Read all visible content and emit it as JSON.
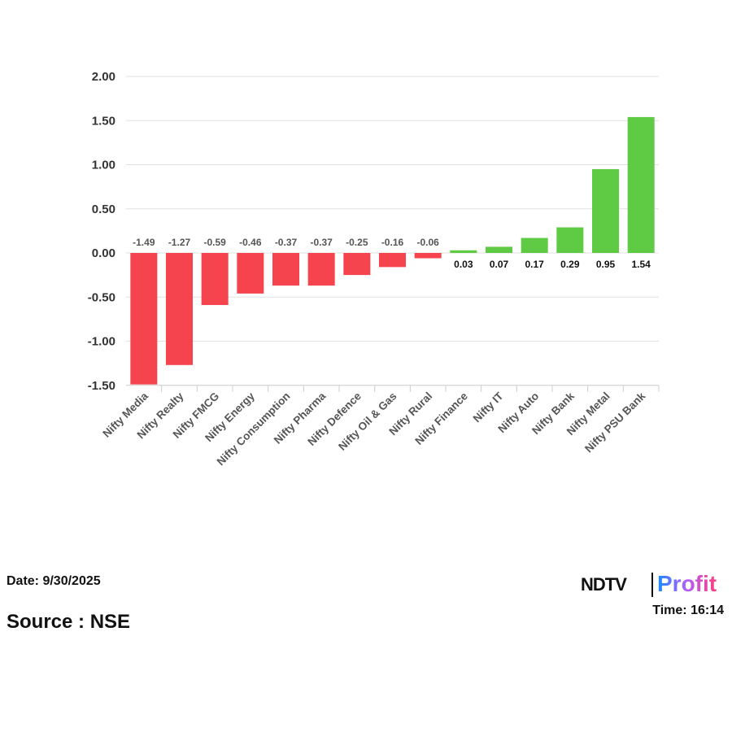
{
  "chart_data": {
    "type": "bar",
    "categories": [
      "Nifty Media",
      "Nifty Realty",
      "Nifty FMCG",
      "Nifty Energy",
      "Nifty Consumption",
      "Nifty Pharma",
      "Nifty Defence",
      "Nifty Oil & Gas",
      "Nifty Rural",
      "Nifty Finance",
      "Nifty IT",
      "Nifty Auto",
      "Nifty Bank",
      "Nifty Metal",
      "Nifty PSU Bank"
    ],
    "values": [
      -1.49,
      -1.27,
      -0.59,
      -0.46,
      -0.37,
      -0.37,
      -0.25,
      -0.16,
      -0.06,
      0.03,
      0.07,
      0.17,
      0.29,
      0.95,
      1.54
    ],
    "ylim": [
      -1.5,
      2.0
    ],
    "yticks": [
      "2.00",
      "1.50",
      "1.00",
      "0.50",
      "0.00",
      "-0.50",
      "-1.00",
      "-1.50"
    ],
    "ytick_values": [
      2,
      1.5,
      1,
      0.5,
      0,
      -0.5,
      -1,
      -1.5
    ],
    "colors": {
      "positive": "#5fcb45",
      "negative": "#f5444d"
    },
    "grid": true
  },
  "footer": {
    "date": "Date: 9/30/2025",
    "source": "Source : NSE",
    "time": "Time: 16:14"
  },
  "logo": {
    "brand": "NDTV",
    "product": "Profit"
  }
}
